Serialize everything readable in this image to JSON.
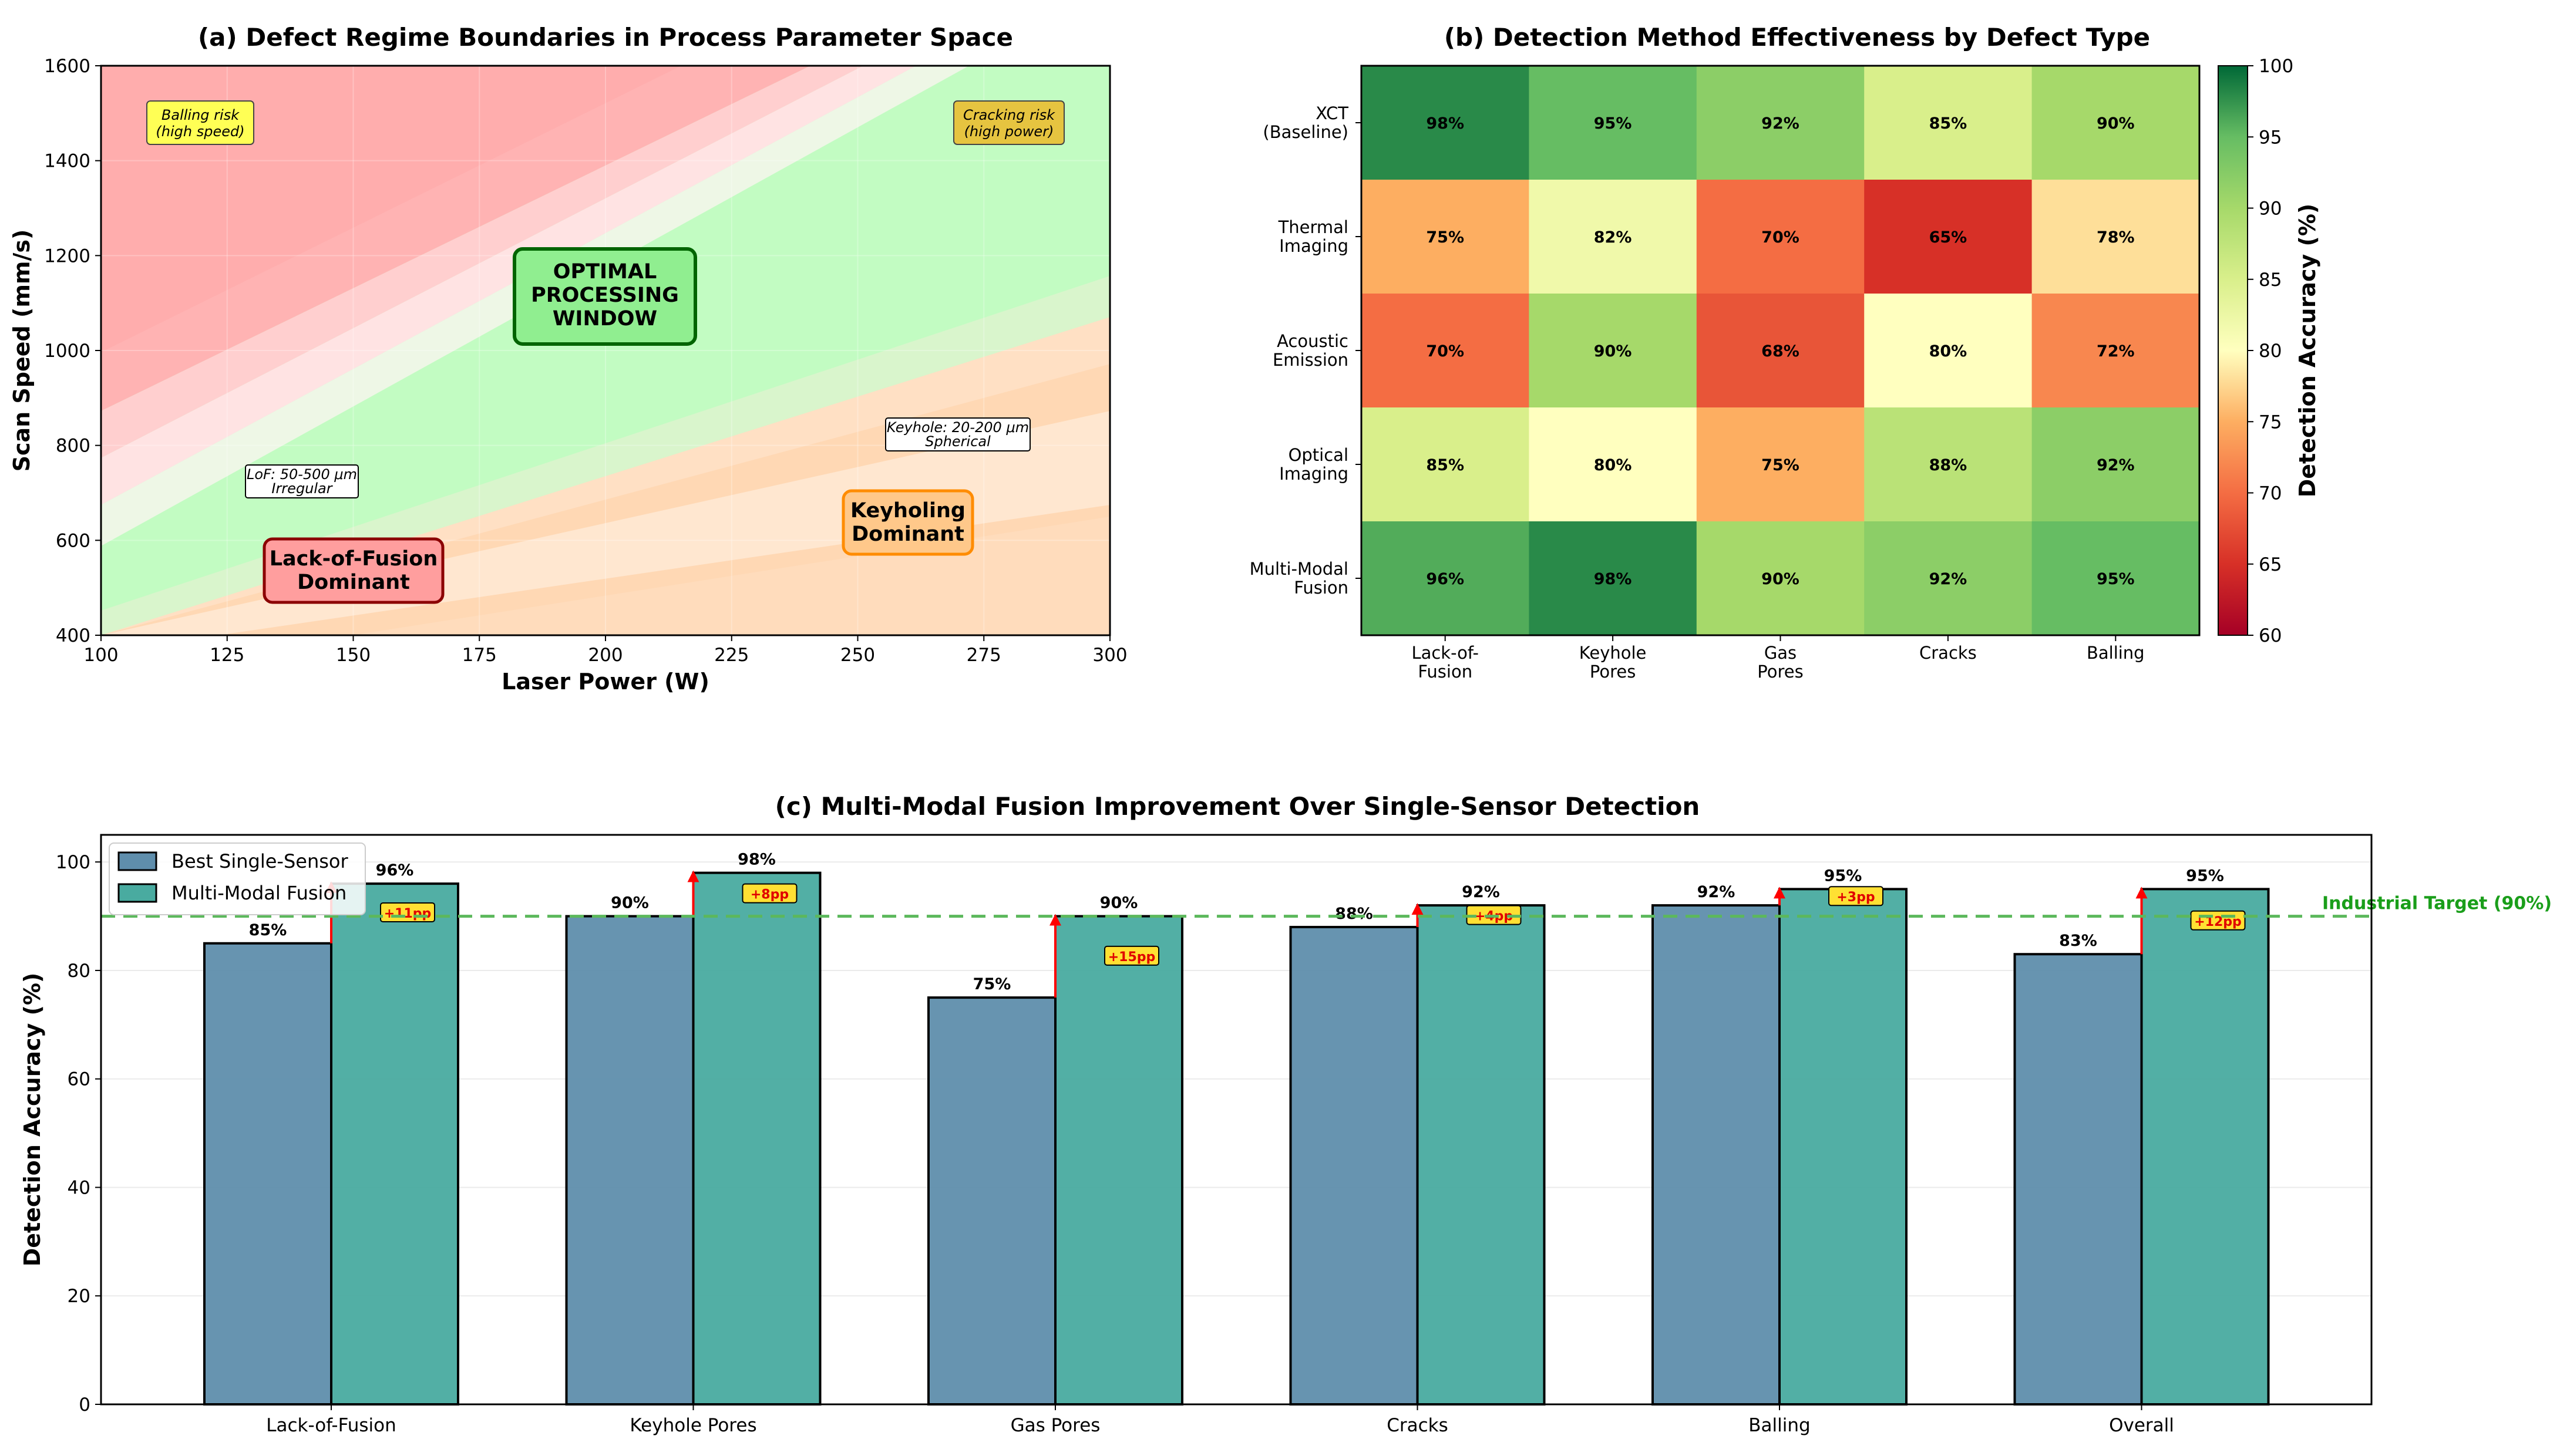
{
  "colors": {
    "lof": "#ff9e9e",
    "keyhole": "#ffc88a",
    "optimal": "#c2fcc2",
    "single": "#5f8eac",
    "fusion": "#49aba0",
    "target": "#5cb85c",
    "arrow": "#ff0000"
  },
  "chart_data": [
    {
      "id": "a",
      "type": "heatmap",
      "title": "(a) Defect Regime Boundaries in Process Parameter Space",
      "xlabel": "Laser Power (W)",
      "ylabel": "Scan Speed (mm/s)",
      "xlim": [
        100,
        300
      ],
      "ylim": [
        400,
        1600
      ],
      "xticks": [
        "100",
        "125",
        "150",
        "175",
        "200",
        "225",
        "250",
        "275",
        "300"
      ],
      "yticks": [
        "400",
        "600",
        "800",
        "1000",
        "1200",
        "1400",
        "1600"
      ],
      "regions": {
        "lof": "Lack-of-Fusion Dominant",
        "keyhole": "Keyholing Dominant",
        "optimal": "OPTIMAL PROCESSING WINDOW"
      },
      "annotations": {
        "balling": "Balling risk (high speed)",
        "cracking": "Cracking risk (high power)",
        "lof_size": "LoF: 50-500 μm Irregular",
        "keyhole_size": "Keyhole: 20-200 μm Spherical"
      },
      "labels": {
        "lof": [
          "Lack-of-Fusion",
          "Dominant"
        ],
        "keyhole": [
          "Keyholing",
          "Dominant"
        ],
        "optimal": [
          "OPTIMAL",
          "PROCESSING",
          "WINDOW"
        ],
        "balling": [
          "Balling risk",
          "(high speed)"
        ],
        "cracking": [
          "Cracking risk",
          "(high power)"
        ],
        "lof_size": [
          "LoF: 50-500 μm",
          "Irregular"
        ],
        "keyhole_size": [
          "Keyhole: 20-200 μm",
          "Spherical"
        ]
      }
    },
    {
      "id": "b",
      "type": "heatmap",
      "title": "(b) Detection Method Effectiveness by Defect Type",
      "rows": [
        [
          "XCT",
          "(Baseline)"
        ],
        [
          "Thermal",
          "Imaging"
        ],
        [
          "Acoustic",
          "Emission"
        ],
        [
          "Optical",
          "Imaging"
        ],
        [
          "Multi-Modal",
          "Fusion"
        ]
      ],
      "columns": [
        [
          "Lack-of-",
          "Fusion"
        ],
        [
          "Keyhole",
          "Pores"
        ],
        [
          "Gas",
          "Pores"
        ],
        [
          "Cracks"
        ],
        [
          "Balling"
        ]
      ],
      "values": [
        [
          98,
          95,
          92,
          85,
          90
        ],
        [
          75,
          82,
          70,
          65,
          78
        ],
        [
          70,
          90,
          68,
          80,
          72
        ],
        [
          85,
          80,
          75,
          88,
          92
        ],
        [
          96,
          98,
          90,
          92,
          95
        ]
      ],
      "colorbar_label": "Detection Accuracy (%)",
      "colorbar_range": [
        60,
        100
      ],
      "colorbar_ticks": [
        "60",
        "65",
        "70",
        "75",
        "80",
        "85",
        "90",
        "95",
        "100"
      ]
    },
    {
      "id": "c",
      "type": "bar",
      "title": "(c) Multi-Modal Fusion Improvement Over Single-Sensor Detection",
      "ylabel": "Detection Accuracy (%)",
      "ylim": [
        0,
        105
      ],
      "yticks": [
        "0",
        "20",
        "40",
        "60",
        "80",
        "100"
      ],
      "categories": [
        "Lack-of-Fusion",
        "Keyhole Pores",
        "Gas Pores",
        "Cracks",
        "Balling",
        "Overall"
      ],
      "series": [
        {
          "name": "Best Single-Sensor",
          "values": [
            85,
            90,
            75,
            88,
            92,
            83
          ],
          "labels": [
            "85%",
            "90%",
            "75%",
            "88%",
            "92%",
            "83%"
          ]
        },
        {
          "name": "Multi-Modal Fusion",
          "values": [
            96,
            98,
            90,
            92,
            95,
            95
          ],
          "labels": [
            "96%",
            "98%",
            "90%",
            "92%",
            "95%",
            "95%"
          ]
        }
      ],
      "gains": [
        "+11pp",
        "+8pp",
        "+15pp",
        "+4pp",
        "+3pp",
        "+12pp"
      ],
      "target_value": 90,
      "target_label": "Industrial Target (90%)",
      "legend": "top-left"
    }
  ]
}
